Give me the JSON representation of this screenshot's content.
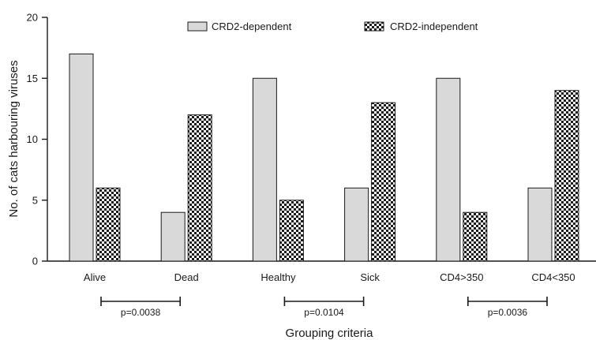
{
  "chart_data": {
    "type": "bar",
    "categories": [
      "Alive",
      "Dead",
      "Healthy",
      "Sick",
      "CD4>350",
      "CD4<350"
    ],
    "series": [
      {
        "name": "CRD2-dependent",
        "values": [
          17,
          4,
          15,
          6,
          15,
          6
        ],
        "color": "#d9d9d9",
        "pattern": "solid"
      },
      {
        "name": "CRD2-independent",
        "values": [
          6,
          12,
          5,
          13,
          4,
          14
        ],
        "color": "#1a1a1a",
        "pattern": "checkerboard"
      }
    ],
    "xlabel": "Grouping criteria",
    "ylabel": "No. of cats harbouring viruses",
    "ylim": [
      0,
      20
    ],
    "yticks": [
      0,
      5,
      10,
      15,
      20
    ],
    "grid": false,
    "legend_position": "top",
    "comparisons": [
      {
        "from": "Alive",
        "to": "Dead",
        "label": "p=0.0038"
      },
      {
        "from": "Healthy",
        "to": "Sick",
        "label": "p=0.0104"
      },
      {
        "from": "CD4>350",
        "to": "CD4<350",
        "label": "p=0.0036"
      }
    ]
  }
}
